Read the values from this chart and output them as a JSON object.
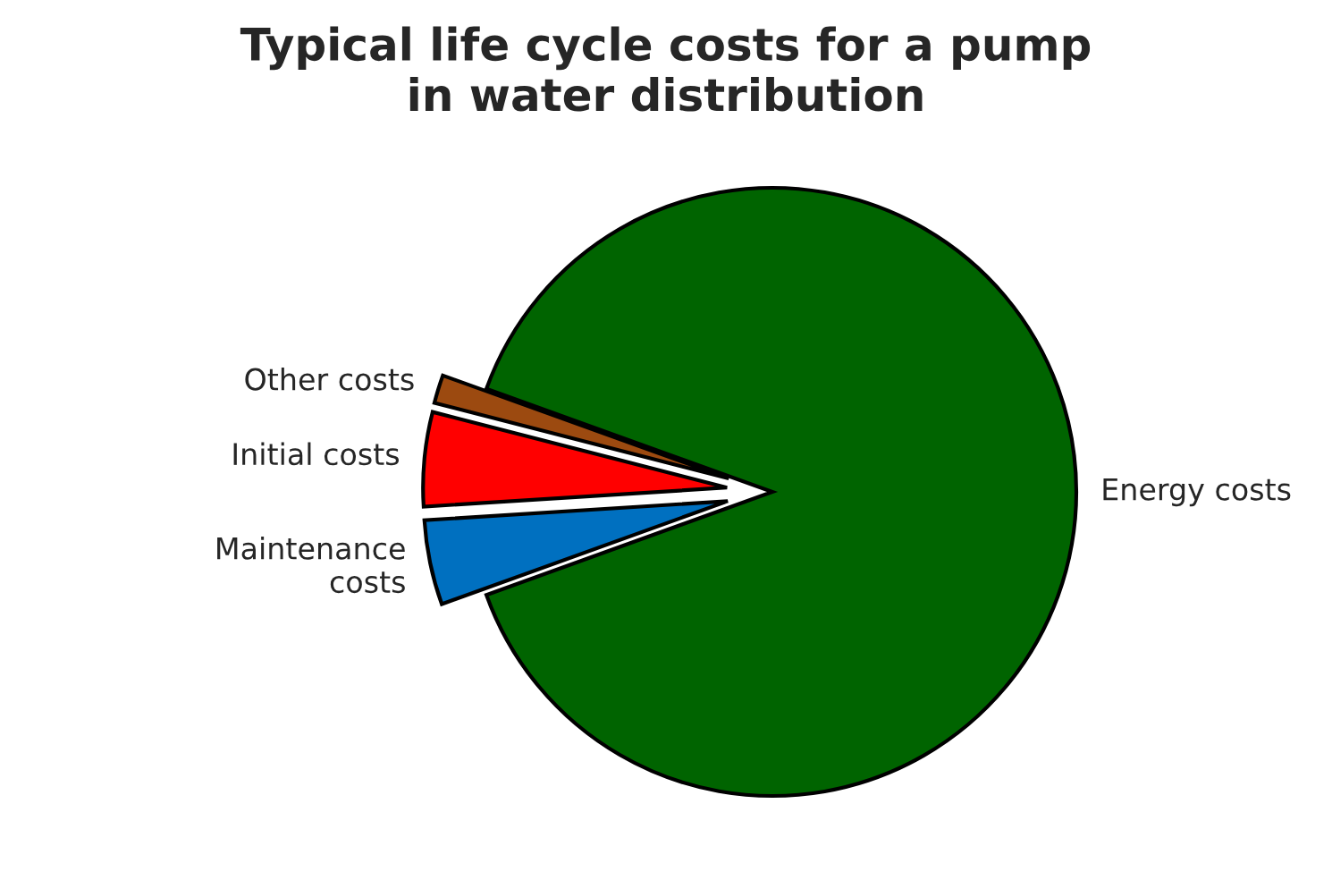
{
  "chart_data": {
    "type": "pie",
    "title": "Typical life cycle costs for a pump\nin water distribution",
    "categories": [
      "Energy costs",
      "Other costs",
      "Initial costs",
      "Maintenance\ncosts"
    ],
    "values": [
      89,
      1.5,
      5,
      4.5
    ],
    "colors": [
      "#006400",
      "#9c4a10",
      "#ff0000",
      "#0070c0"
    ],
    "legend": false
  }
}
